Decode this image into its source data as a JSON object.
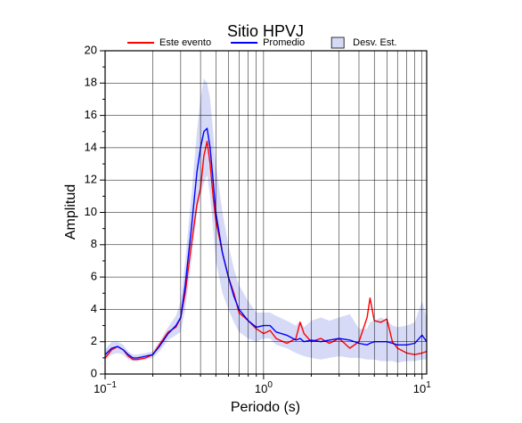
{
  "chart_data": {
    "type": "line",
    "title": "Sitio HPVJ",
    "x_label": "Periodo (s)",
    "y_label": "Amplitud",
    "x_scale": "log",
    "grid": true,
    "xlim": [
      0.1,
      10.7
    ],
    "ylim": [
      0,
      20
    ],
    "xticks": [
      {
        "value": 0.1,
        "label": "10",
        "exponent": "−1"
      },
      {
        "value": 1,
        "label": "10",
        "exponent": "0"
      },
      {
        "value": 10,
        "label": "10",
        "exponent": "1"
      }
    ],
    "xminorticks": [
      0.2,
      0.3,
      0.4,
      0.5,
      0.6,
      0.7,
      0.8,
      0.9,
      2,
      3,
      4,
      5,
      6,
      7,
      8,
      9
    ],
    "yticks": [
      0,
      2,
      4,
      6,
      8,
      10,
      12,
      14,
      16,
      18,
      20
    ],
    "yminorticks": [
      1,
      3,
      5,
      7,
      9,
      11,
      13,
      15,
      17,
      19
    ],
    "x": [
      0.1,
      0.11,
      0.12,
      0.13,
      0.14,
      0.15,
      0.16,
      0.18,
      0.2,
      0.22,
      0.25,
      0.28,
      0.3,
      0.32,
      0.35,
      0.38,
      0.4,
      0.42,
      0.44,
      0.46,
      0.48,
      0.5,
      0.55,
      0.6,
      0.65,
      0.7,
      0.8,
      0.9,
      1.0,
      1.1,
      1.2,
      1.4,
      1.6,
      1.7,
      1.8,
      2.0,
      2.3,
      2.6,
      3.0,
      3.5,
      4.0,
      4.5,
      4.7,
      5.0,
      5.5,
      6.0,
      6.5,
      7.0,
      8.0,
      9.0,
      10.0,
      10.7
    ],
    "band": {
      "name": "Desv. Est.",
      "color": "#d6daf6",
      "upper": [
        1.5,
        2.0,
        2.0,
        1.8,
        1.4,
        1.2,
        1.2,
        1.3,
        1.4,
        2.0,
        2.9,
        3.6,
        4.5,
        7.0,
        11.0,
        15.0,
        17.0,
        18.3,
        18.0,
        17.0,
        15.0,
        13.0,
        10.0,
        8.0,
        6.5,
        5.5,
        4.5,
        3.8,
        3.8,
        3.8,
        3.6,
        3.3,
        3.0,
        3.3,
        2.9,
        3.3,
        3.5,
        3.3,
        3.5,
        3.7,
        2.8,
        2.8,
        3.2,
        3.3,
        3.5,
        3.3,
        3.0,
        2.9,
        3.0,
        3.2,
        4.5,
        3.5
      ],
      "lower": [
        0.9,
        1.2,
        1.3,
        1.2,
        0.9,
        0.8,
        0.8,
        0.9,
        1.0,
        1.4,
        2.1,
        2.4,
        2.6,
        4.0,
        7.0,
        10.0,
        11.0,
        11.8,
        12.3,
        11.0,
        9.0,
        7.0,
        5.0,
        4.0,
        3.2,
        2.6,
        2.2,
        2.0,
        2.2,
        2.2,
        1.8,
        1.6,
        1.3,
        1.2,
        1.1,
        1.0,
        0.9,
        1.0,
        1.1,
        1.0,
        1.0,
        0.9,
        0.9,
        0.9,
        0.8,
        0.8,
        0.8,
        0.7,
        0.8,
        0.8,
        0.9,
        0.9
      ]
    },
    "series": [
      {
        "name": "Este evento",
        "color": "#ff0000",
        "values": [
          1.0,
          1.5,
          1.7,
          1.5,
          1.1,
          0.9,
          0.9,
          1.0,
          1.2,
          1.8,
          2.6,
          2.9,
          3.5,
          5.0,
          8.0,
          10.5,
          11.5,
          13.5,
          14.4,
          13.0,
          11.0,
          9.5,
          7.5,
          6.0,
          5.0,
          3.8,
          3.3,
          2.8,
          2.5,
          2.7,
          2.2,
          1.9,
          2.2,
          3.2,
          2.5,
          2.0,
          2.2,
          1.9,
          2.2,
          1.6,
          2.0,
          3.5,
          4.7,
          3.3,
          3.2,
          3.4,
          2.0,
          1.6,
          1.3,
          1.2,
          1.3,
          1.4
        ]
      },
      {
        "name": "Promedio",
        "color": "#0000ff",
        "values": [
          1.2,
          1.6,
          1.7,
          1.5,
          1.2,
          1.0,
          1.0,
          1.1,
          1.2,
          1.7,
          2.5,
          3.0,
          3.5,
          5.5,
          9.0,
          12.5,
          14.0,
          15.0,
          15.2,
          14.0,
          12.0,
          10.0,
          7.5,
          6.0,
          4.8,
          4.0,
          3.3,
          2.9,
          3.0,
          3.0,
          2.6,
          2.4,
          2.1,
          2.2,
          2.0,
          2.1,
          2.0,
          2.1,
          2.2,
          2.1,
          1.9,
          1.8,
          1.9,
          2.0,
          2.0,
          2.0,
          1.9,
          1.8,
          1.8,
          1.9,
          2.4,
          2.0
        ]
      }
    ]
  }
}
